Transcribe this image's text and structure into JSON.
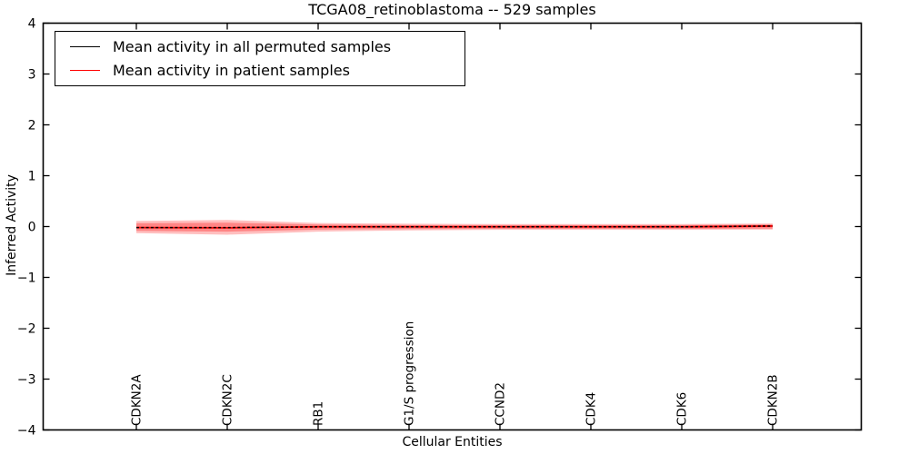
{
  "title": "TCGA08_retinoblastoma -- 529 samples",
  "legend": {
    "position": "upper left",
    "entries": [
      {
        "label": "Mean activity in all permuted samples",
        "color": "#000000",
        "line_style": "dashed"
      },
      {
        "label": "Mean activity in patient samples",
        "color": "#ff0000",
        "line_style": "solid"
      }
    ]
  },
  "chart_data": {
    "type": "line",
    "title": "TCGA08_retinoblastoma -- 529 samples",
    "xlabel": "Cellular Entities",
    "ylabel": "Inferred Activity",
    "ylim": [
      -4,
      4
    ],
    "yticks": [
      4,
      3,
      2,
      1,
      0,
      -1,
      -2,
      -3,
      -4
    ],
    "ytick_labels": [
      "4",
      "3",
      "2",
      "1",
      "0",
      "−1",
      "−2",
      "−3",
      "−4"
    ],
    "grid": false,
    "legend_position": "upper left",
    "categories": [
      "CDKN2A",
      "CDKN2C",
      "RB1",
      "G1/S progression",
      "CCND2",
      "CDK4",
      "CDK6",
      "CDKN2B"
    ],
    "series": [
      {
        "name": "Mean activity in all permuted samples",
        "color": "#000000",
        "line_style": "dashed",
        "values": [
          -0.02,
          -0.02,
          -0.005,
          -0.005,
          -0.005,
          -0.005,
          -0.005,
          0.01
        ]
      },
      {
        "name": "Mean activity in patient samples",
        "color": "#ff0000",
        "line_style": "solid",
        "values": [
          -0.02,
          -0.025,
          -0.005,
          -0.005,
          -0.005,
          -0.005,
          -0.005,
          0.01
        ]
      }
    ],
    "uncertainty_band": {
      "color": "#ff0000",
      "outer_upper": [
        0.11,
        0.13,
        0.07,
        0.055,
        0.05,
        0.05,
        0.05,
        0.06
      ],
      "outer_lower": [
        -0.13,
        -0.16,
        -0.1,
        -0.075,
        -0.065,
        -0.065,
        -0.065,
        -0.06
      ],
      "inner_upper": [
        0.065,
        0.075,
        0.04,
        0.03,
        0.03,
        0.03,
        0.03,
        0.04
      ],
      "inner_lower": [
        -0.085,
        -0.1,
        -0.06,
        -0.05,
        -0.045,
        -0.045,
        -0.045,
        -0.04
      ]
    }
  }
}
